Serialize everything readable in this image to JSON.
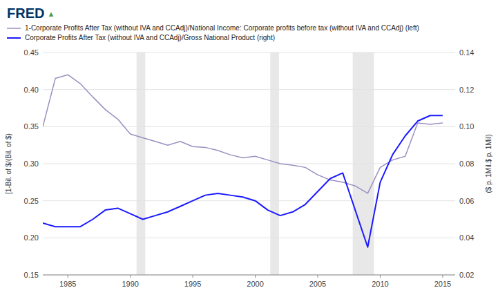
{
  "chart_data": {
    "type": "line",
    "annotations": [
      "FRED",
      "▲"
    ],
    "y_label": "[1-Bil. of $/(Bil. of $)",
    "y2_label": "($ p. 1Mil.$ p. 1Mil)",
    "x": [
      1983,
      1984,
      1985,
      1986,
      1987,
      1988,
      1989,
      1990,
      1991,
      1992,
      1993,
      1994,
      1995,
      1996,
      1997,
      1998,
      1999,
      2000,
      2001,
      2002,
      2003,
      2004,
      2005,
      2006,
      2007,
      2008,
      2009,
      2010,
      2011,
      2012,
      2013,
      2014,
      2015
    ],
    "series": [
      {
        "name": "1-Corporate Profits After Tax (without IVA and CCAdj)/National Income: Corporate profits before tax (without IVA and CCAdj) (left)",
        "color": "#9b8fc0",
        "values": [
          0.35,
          0.415,
          0.42,
          0.408,
          0.39,
          0.373,
          0.36,
          0.34,
          0.335,
          0.33,
          0.325,
          0.33,
          0.323,
          0.322,
          0.318,
          0.312,
          0.308,
          0.31,
          0.305,
          0.3,
          0.298,
          0.295,
          0.285,
          0.278,
          0.275,
          0.27,
          0.26,
          0.295,
          0.305,
          0.31,
          0.355,
          0.353,
          0.355
        ]
      },
      {
        "name": "Corporate Profits After Tax (without IVA and CCAdj)/Gross National Product (right)",
        "color": "#1a1aff",
        "axis": "y2",
        "values": [
          0.048,
          0.046,
          0.046,
          0.046,
          0.05,
          0.055,
          0.056,
          0.053,
          0.05,
          0.052,
          0.054,
          0.057,
          0.06,
          0.063,
          0.064,
          0.063,
          0.062,
          0.06,
          0.055,
          0.052,
          0.054,
          0.058,
          0.065,
          0.072,
          0.075,
          0.055,
          0.035,
          0.07,
          0.085,
          0.095,
          0.103,
          0.106,
          0.106
        ]
      }
    ],
    "bands": [
      [
        1990.5,
        1991.2
      ],
      [
        2001.2,
        2001.9
      ],
      [
        2007.8,
        2009.5
      ]
    ],
    "xlim": [
      1983,
      2016
    ],
    "xticks": [
      1985,
      1990,
      1995,
      2000,
      2005,
      2010,
      2015
    ],
    "ylim": [
      0.15,
      0.45
    ],
    "yticks": [
      0.15,
      {
        "value": 0.2,
        "label": "0.20"
      },
      0.25,
      {
        "value": 0.3,
        "label": "0.30"
      },
      0.35,
      {
        "value": 0.4,
        "label": "0.40"
      },
      0.45
    ],
    "y2lim": [
      0.02,
      0.14
    ],
    "y2ticks": [
      0.02,
      0.04,
      0.06,
      0.08,
      {
        "value": 0.1,
        "label": "0.10"
      },
      0.12,
      0.14
    ],
    "grid": true,
    "legend": "top-left"
  }
}
